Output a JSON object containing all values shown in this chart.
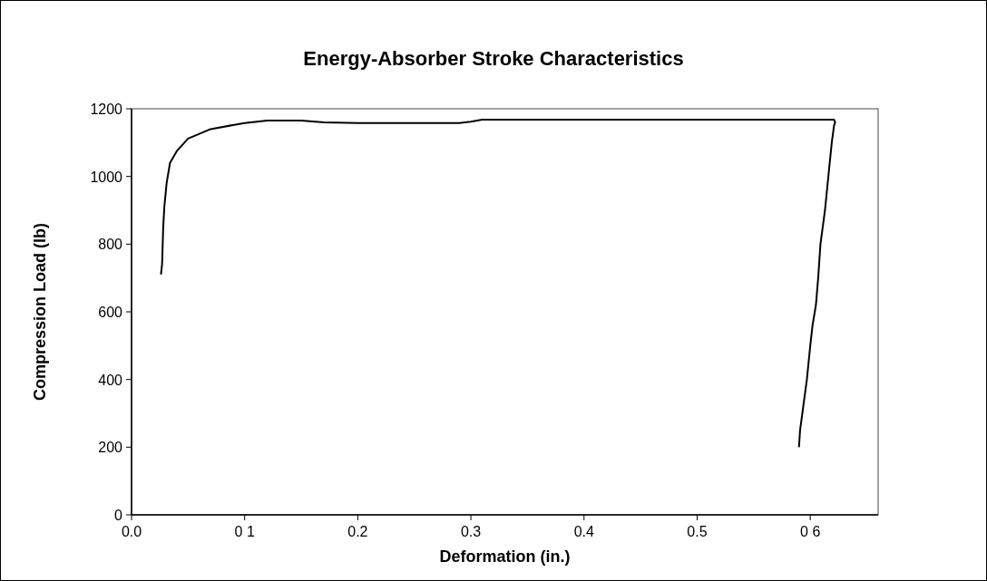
{
  "chart_data": {
    "type": "line",
    "title": "Energy-Absorber Stroke Characteristics",
    "xlabel": "Deformation (in.)",
    "ylabel": "Compression Load (lb)",
    "xlim": [
      0,
      0.66
    ],
    "xticks": [
      {
        "value": 0,
        "label": "0.0"
      },
      {
        "value": 0.1,
        "label": "0 1"
      },
      0.2,
      0.3,
      0.4,
      0.5,
      {
        "value": 0.6,
        "label": "0 6"
      }
    ],
    "ylim": [
      0,
      1200
    ],
    "yticks": [
      0,
      200,
      400,
      600,
      800,
      1000,
      1200
    ],
    "grid": false,
    "marker": "none",
    "line_style": "solid",
    "series": [
      {
        "color": "#000000",
        "x": [
          0.026,
          0.027,
          0.028,
          0.029,
          0.031,
          0.034,
          0.04,
          0.05,
          0.07,
          0.1,
          0.12,
          0.15,
          0.17,
          0.2,
          0.29,
          0.3,
          0.31,
          0.5,
          0.621,
          0.622,
          0.621,
          0.619,
          0.616,
          0.613,
          0.609,
          0.607,
          0.605,
          0.602,
          0.6,
          0.597,
          0.595,
          0.593,
          0.591,
          0.59
        ],
        "values": [
          710,
          740,
          850,
          910,
          980,
          1040,
          1075,
          1112,
          1140,
          1158,
          1165,
          1165,
          1160,
          1158,
          1158,
          1162,
          1168,
          1168,
          1168,
          1160,
          1150,
          1100,
          1000,
          900,
          800,
          700,
          620,
          560,
          500,
          400,
          350,
          300,
          250,
          200
        ]
      }
    ]
  }
}
